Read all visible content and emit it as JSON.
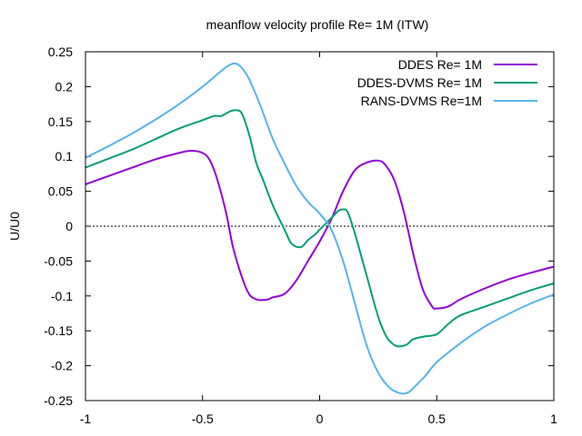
{
  "chart_data": {
    "type": "line",
    "title": "meanflow velocity profile  Re= 1M (ITW)",
    "xlabel": "",
    "ylabel": "U/U0",
    "xlim": [
      -1,
      1
    ],
    "ylim": [
      -0.25,
      0.25
    ],
    "xticks": [
      -1,
      -0.5,
      0,
      0.5,
      1
    ],
    "xtick_labels": [
      "-1",
      "-0.5",
      "0",
      "0.5",
      "1"
    ],
    "yticks": [
      -0.25,
      -0.2,
      -0.15,
      -0.1,
      -0.05,
      0,
      0.05,
      0.1,
      0.15,
      0.2,
      0.25
    ],
    "ytick_labels": [
      "-0.25",
      "-0.2",
      "-0.15",
      "-0.1",
      "-0.05",
      "0",
      "0.05",
      "0.1",
      "0.15",
      "0.2",
      "0.25"
    ],
    "zero_line": true,
    "legend_position": "top-right",
    "series": [
      {
        "name": "DDES Re= 1M",
        "color": "#9400d3",
        "x": [
          -1,
          -0.9,
          -0.8,
          -0.7,
          -0.6,
          -0.55,
          -0.5,
          -0.47,
          -0.44,
          -0.4,
          -0.37,
          -0.33,
          -0.3,
          -0.27,
          -0.25,
          -0.22,
          -0.2,
          -0.15,
          -0.1,
          -0.05,
          0,
          0.05,
          0.1,
          0.15,
          0.2,
          0.25,
          0.28,
          0.32,
          0.36,
          0.4,
          0.44,
          0.48,
          0.5,
          0.55,
          0.6,
          0.7,
          0.8,
          0.9,
          1
        ],
        "y": [
          0.06,
          0.072,
          0.084,
          0.096,
          0.105,
          0.108,
          0.105,
          0.095,
          0.07,
          0.02,
          -0.03,
          -0.075,
          -0.098,
          -0.105,
          -0.106,
          -0.105,
          -0.102,
          -0.097,
          -0.078,
          -0.05,
          -0.022,
          0.01,
          0.05,
          0.08,
          0.091,
          0.094,
          0.088,
          0.065,
          0.02,
          -0.04,
          -0.09,
          -0.115,
          -0.118,
          -0.115,
          -0.105,
          -0.09,
          -0.077,
          -0.067,
          -0.058
        ]
      },
      {
        "name": "DDES-DVMS Re= 1M",
        "color": "#009e73",
        "x": [
          -1,
          -0.9,
          -0.8,
          -0.7,
          -0.6,
          -0.5,
          -0.45,
          -0.42,
          -0.38,
          -0.35,
          -0.33,
          -0.3,
          -0.27,
          -0.24,
          -0.2,
          -0.15,
          -0.12,
          -0.08,
          -0.05,
          -0.02,
          0,
          0.03,
          0.06,
          0.08,
          0.1,
          0.12,
          0.15,
          0.2,
          0.25,
          0.28,
          0.3,
          0.33,
          0.37,
          0.4,
          0.45,
          0.5,
          0.55,
          0.6,
          0.7,
          0.8,
          0.9,
          1
        ],
        "y": [
          0.084,
          0.097,
          0.11,
          0.125,
          0.14,
          0.152,
          0.158,
          0.158,
          0.165,
          0.166,
          0.16,
          0.13,
          0.09,
          0.065,
          0.03,
          -0.005,
          -0.025,
          -0.03,
          -0.02,
          -0.012,
          -0.005,
          0.005,
          0.015,
          0.022,
          0.024,
          0.02,
          -0.01,
          -0.07,
          -0.13,
          -0.155,
          -0.165,
          -0.172,
          -0.17,
          -0.162,
          -0.158,
          -0.155,
          -0.14,
          -0.128,
          -0.116,
          -0.104,
          -0.092,
          -0.082
        ]
      },
      {
        "name": "RANS-DVMS Re=1M",
        "color": "#56b4e9",
        "x": [
          -1,
          -0.9,
          -0.8,
          -0.7,
          -0.6,
          -0.5,
          -0.45,
          -0.4,
          -0.37,
          -0.35,
          -0.33,
          -0.3,
          -0.25,
          -0.2,
          -0.15,
          -0.1,
          -0.05,
          0,
          0.05,
          0.1,
          0.15,
          0.2,
          0.25,
          0.3,
          0.35,
          0.38,
          0.4,
          0.45,
          0.5,
          0.6,
          0.7,
          0.8,
          0.9,
          1
        ],
        "y": [
          0.098,
          0.115,
          0.133,
          0.153,
          0.175,
          0.2,
          0.214,
          0.228,
          0.233,
          0.232,
          0.226,
          0.21,
          0.17,
          0.125,
          0.09,
          0.058,
          0.035,
          0.018,
          -0.005,
          -0.05,
          -0.11,
          -0.17,
          -0.21,
          -0.232,
          -0.24,
          -0.238,
          -0.232,
          -0.215,
          -0.195,
          -0.168,
          -0.145,
          -0.127,
          -0.111,
          -0.098
        ]
      }
    ]
  }
}
